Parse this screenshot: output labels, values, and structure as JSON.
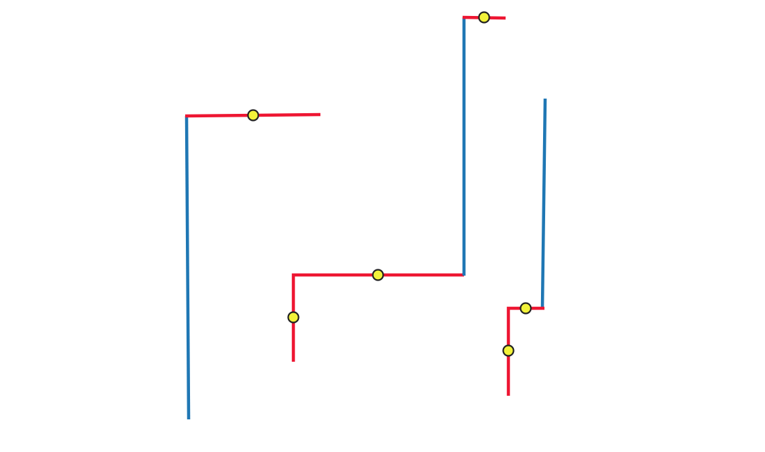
{
  "diagram": {
    "colors": {
      "blue": "#1f77b4",
      "red": "#ee1632",
      "marker_fill": "#f2f23a",
      "marker_stroke": "#222222"
    },
    "marker_icon": "circle-marker"
  }
}
